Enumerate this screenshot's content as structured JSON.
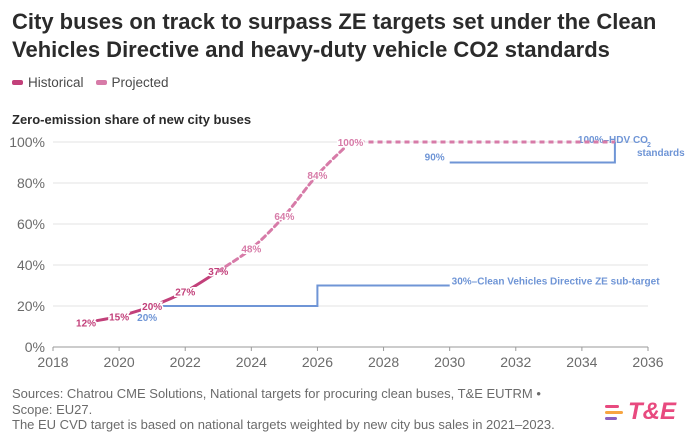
{
  "title": "City buses on track to surpass ZE targets set under the Clean Vehicles Directive and heavy-duty vehicle CO2 standards",
  "legend": [
    {
      "label": "Historical",
      "color": "#c2407a"
    },
    {
      "label": "Projected",
      "color": "#d77ba8"
    }
  ],
  "subtitle": "Zero-emission share of new city buses",
  "chart_data": {
    "type": "line",
    "title": "Zero-emission share of new city buses",
    "xlim": [
      2018,
      2036
    ],
    "ylim": [
      0,
      100
    ],
    "x_ticks": [
      "2018",
      "2020",
      "2022",
      "2024",
      "2026",
      "2028",
      "2030",
      "2032",
      "2034",
      "2036"
    ],
    "y_ticks": [
      "0%",
      "20%",
      "40%",
      "60%",
      "80%",
      "100%"
    ],
    "series": [
      {
        "name": "Historical",
        "color": "#c2407a",
        "style": "solid",
        "points": [
          {
            "x": 2019,
            "y": 12,
            "label": "12%"
          },
          {
            "x": 2020,
            "y": 15,
            "label": "15%"
          },
          {
            "x": 2021,
            "y": 20,
            "label": "20%"
          },
          {
            "x": 2022,
            "y": 27,
            "label": "27%"
          },
          {
            "x": 2023,
            "y": 37,
            "label": "37%"
          }
        ]
      },
      {
        "name": "Projected",
        "color": "#d77ba8",
        "style": "dashed",
        "points": [
          {
            "x": 2023,
            "y": 37,
            "label": ""
          },
          {
            "x": 2024,
            "y": 48,
            "label": "48%"
          },
          {
            "x": 2025,
            "y": 64,
            "label": "64%"
          },
          {
            "x": 2026,
            "y": 84,
            "label": "84%"
          },
          {
            "x": 2027,
            "y": 100,
            "label": "100%"
          },
          {
            "x": 2035,
            "y": 100,
            "label": ""
          }
        ]
      }
    ],
    "targets": [
      {
        "name": "Clean Vehicles Directive ZE sub-target",
        "color": "#6f95d6",
        "steps": [
          {
            "x": 2021,
            "y": 20
          },
          {
            "x": 2026,
            "y": 20
          },
          {
            "x": 2026,
            "y": 30
          },
          {
            "x": 2030,
            "y": 30
          }
        ],
        "labels": [
          {
            "x": 2021,
            "y": 20,
            "text": "20%"
          },
          {
            "x": 2030,
            "y": 30,
            "text": "30%–Clean Vehicles Directive ZE sub-target"
          }
        ]
      },
      {
        "name": "HDV CO2 standards",
        "color": "#6f95d6",
        "steps": [
          {
            "x": 2030,
            "y": 90
          },
          {
            "x": 2035,
            "y": 90
          },
          {
            "x": 2035,
            "y": 100
          }
        ],
        "labels": [
          {
            "x": 2030,
            "y": 90,
            "text": "90%"
          },
          {
            "x": 2035,
            "y": 100,
            "text": "100%–HDV CO"
          },
          {
            "x": 2035,
            "y": 100,
            "text": "2"
          },
          {
            "x": 2035,
            "y": 100,
            "text": "standards"
          }
        ]
      }
    ]
  },
  "footer": {
    "line1": "Sources: Chatrou CME Solutions, National targets for procuring clean buses, T&E EUTRM •",
    "line2": "Scope: EU27.",
    "line3": "The EU CVD target is based on national targets weighted by new city bus sales in 2021–2023."
  },
  "logo": {
    "text": "T&E",
    "colors": [
      "#e84a7f",
      "#f7a541",
      "#8b5fbf"
    ]
  }
}
